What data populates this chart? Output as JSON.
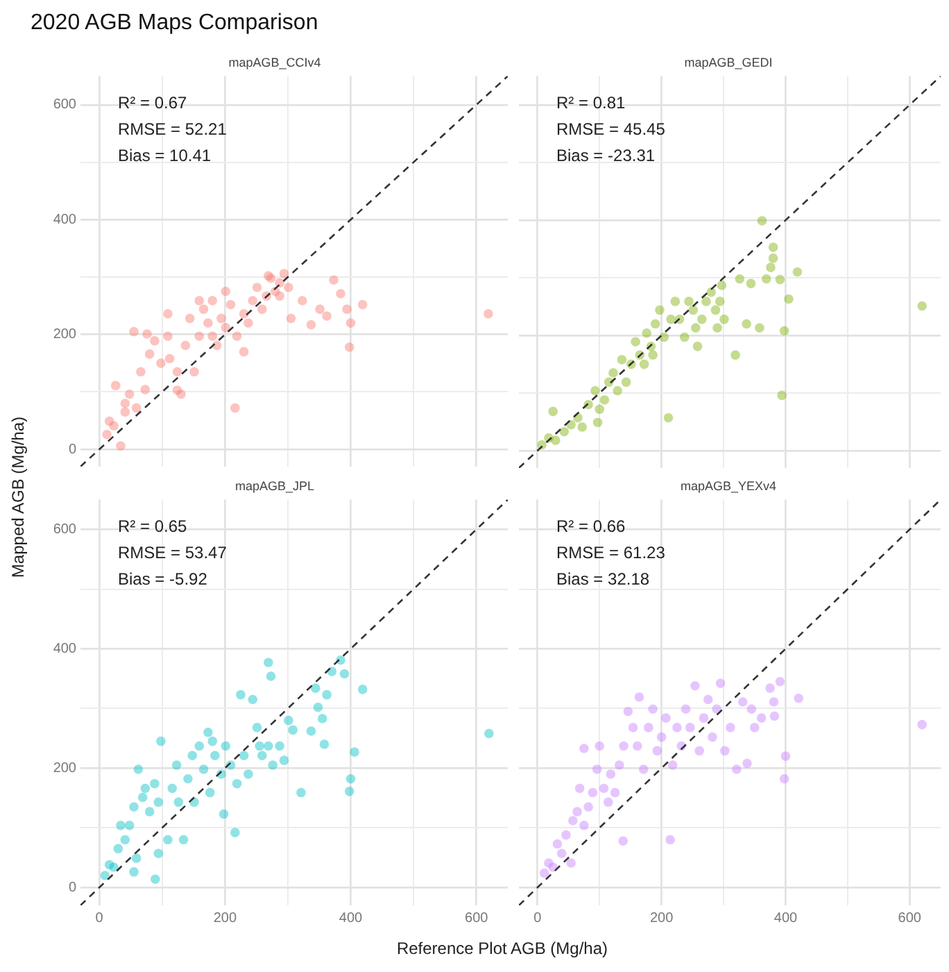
{
  "chart_data": [
    {
      "type": "scatter",
      "title": "2020 AGB Maps Comparison",
      "subtitle": "mapAGB_CCIv4",
      "ylabel": "Mapped AGB (Mg/ha)",
      "annotations": [
        "R² = 0.67",
        "RMSE = 52.21",
        "Bias = 10.41"
      ],
      "xlim": [
        -30,
        650
      ],
      "ylim": [
        -30,
        650
      ],
      "xticks": [
        0,
        {
          "value": 100,
          "label": null
        },
        200,
        {
          "value": 300,
          "label": null
        },
        400,
        {
          "value": 500,
          "label": null
        },
        600
      ],
      "yticks": [
        0,
        {
          "value": 100,
          "label": null
        },
        200,
        {
          "value": 300,
          "label": null
        },
        400,
        {
          "value": 500,
          "label": null
        },
        600
      ],
      "tick_labels": "y",
      "grid": true,
      "legend": false,
      "marker": "circle",
      "series": [
        {
          "type": "scatter",
          "color": "#f8766d",
          "x": [
            12,
            23,
            16,
            34,
            26,
            41,
            48,
            59,
            73,
            66,
            80,
            88,
            55,
            76,
            98,
            109,
            112,
            124,
            130,
            137,
            144,
            151,
            159,
            166,
            173,
            180,
            187,
            194,
            201,
            201,
            209,
            216,
            219,
            230,
            230,
            237,
            244,
            251,
            259,
            266,
            273,
            280,
            287,
            294,
            301,
            305,
            323,
            337,
            351,
            362,
            373,
            384,
            394,
            400,
            398,
            419,
            619,
            41,
            109,
            159,
            287,
            269,
            180,
            124
          ],
          "values": [
            26,
            41,
            49,
            6,
            111,
            80,
            96,
            72,
            104,
            135,
            166,
            189,
            205,
            201,
            150,
            197,
            158,
            135,
            96,
            181,
            228,
            135,
            197,
            244,
            220,
            259,
            181,
            228,
            275,
            212,
            252,
            72,
            197,
            236,
            170,
            220,
            259,
            282,
            244,
            267,
            298,
            275,
            290,
            306,
            282,
            228,
            259,
            217,
            244,
            232,
            295,
            271,
            244,
            220,
            178,
            252,
            236,
            65,
            236,
            259,
            267,
            302,
            197,
            103
          ]
        },
        {
          "type": "line",
          "color": "#333333",
          "line_style": "dashed",
          "marker": "none",
          "x": [
            -30,
            650
          ],
          "values": [
            -30,
            650
          ]
        }
      ]
    },
    {
      "type": "scatter",
      "subtitle": "mapAGB_GEDI",
      "annotations": [
        "R² = 0.81",
        "RMSE = 45.45",
        "Bias = -23.31"
      ],
      "xlim": [
        -30,
        650
      ],
      "ylim": [
        -30,
        650
      ],
      "xticks": [
        0,
        {
          "value": 100,
          "label": null
        },
        200,
        {
          "value": 300,
          "label": null
        },
        400,
        {
          "value": 500,
          "label": null
        },
        600
      ],
      "yticks": [
        0,
        {
          "value": 100,
          "label": null
        },
        200,
        {
          "value": 300,
          "label": null
        },
        400,
        {
          "value": 500,
          "label": null
        },
        600
      ],
      "tick_labels": false,
      "grid": true,
      "legend": false,
      "marker": "circle",
      "series": [
        {
          "type": "scatter",
          "color": "#7cae00",
          "x": [
            7,
            18,
            29,
            25,
            43,
            54,
            65,
            72,
            82,
            93,
            108,
            100,
            115,
            122,
            129,
            136,
            143,
            151,
            158,
            165,
            172,
            176,
            183,
            190,
            197,
            204,
            211,
            215,
            222,
            229,
            237,
            244,
            251,
            258,
            265,
            272,
            280,
            287,
            294,
            301,
            290,
            297,
            319,
            326,
            337,
            344,
            358,
            362,
            369,
            376,
            380,
            380,
            391,
            398,
            394,
            405,
            419,
            620,
            255,
            186,
            97
          ],
          "values": [
            10,
            22,
            18,
            68,
            33,
            45,
            57,
            41,
            80,
            104,
            88,
            72,
            119,
            135,
            104,
            158,
            119,
            150,
            189,
            166,
            150,
            204,
            181,
            220,
            244,
            197,
            57,
            228,
            259,
            228,
            197,
            259,
            244,
            181,
            228,
            259,
            275,
            244,
            259,
            228,
            213,
            287,
            166,
            298,
            220,
            290,
            213,
            399,
            298,
            318,
            353,
            334,
            297,
            208,
            96,
            263,
            310,
            251,
            213,
            166,
            49
          ]
        },
        {
          "type": "line",
          "color": "#333333",
          "line_style": "dashed",
          "marker": "none",
          "x": [
            -30,
            650
          ],
          "values": [
            -30,
            650
          ]
        }
      ]
    },
    {
      "type": "scatter",
      "subtitle": "mapAGB_JPL",
      "xlabel": "Reference Plot AGB (Mg/ha)",
      "annotations": [
        "R² = 0.65",
        "RMSE = 53.47",
        "Bias = -5.92"
      ],
      "xlim": [
        -30,
        650
      ],
      "ylim": [
        -30,
        650
      ],
      "xticks": [
        0,
        {
          "value": 100,
          "label": null
        },
        200,
        {
          "value": 300,
          "label": null
        },
        400,
        {
          "value": 500,
          "label": null
        },
        600
      ],
      "yticks": [
        0,
        {
          "value": 100,
          "label": null
        },
        200,
        {
          "value": 300,
          "label": null
        },
        400,
        {
          "value": 500,
          "label": null
        },
        600
      ],
      "grid": true,
      "legend": false,
      "marker": "circle",
      "series": [
        {
          "type": "scatter",
          "color": "#00bfc4",
          "x": [
            9,
            16,
            23,
            30,
            34,
            41,
            48,
            55,
            62,
            59,
            55,
            69,
            73,
            80,
            88,
            94,
            98,
            109,
            94,
            89,
            116,
            123,
            126,
            134,
            141,
            148,
            151,
            159,
            166,
            173,
            176,
            184,
            194,
            198,
            201,
            209,
            216,
            219,
            225,
            230,
            237,
            244,
            251,
            259,
            269,
            273,
            269,
            276,
            287,
            294,
            301,
            308,
            321,
            337,
            344,
            348,
            355,
            358,
            362,
            370,
            384,
            390,
            398,
            400,
            406,
            419,
            620,
            255,
            180
          ],
          "values": [
            20,
            38,
            34,
            65,
            104,
            80,
            104,
            135,
            198,
            49,
            26,
            151,
            166,
            127,
            174,
            143,
            245,
            80,
            57,
            14,
            166,
            205,
            143,
            80,
            182,
            221,
            143,
            237,
            198,
            260,
            159,
            221,
            190,
            123,
            237,
            205,
            92,
            174,
            323,
            221,
            190,
            315,
            268,
            221,
            377,
            354,
            237,
            205,
            237,
            213,
            280,
            264,
            159,
            262,
            334,
            302,
            283,
            240,
            323,
            362,
            381,
            358,
            161,
            182,
            227,
            332,
            258,
            237,
            245
          ]
        },
        {
          "type": "line",
          "color": "#333333",
          "line_style": "dashed",
          "marker": "none",
          "x": [
            -30,
            650
          ],
          "values": [
            -30,
            650
          ]
        }
      ]
    },
    {
      "type": "scatter",
      "subtitle": "mapAGB_YEXv4",
      "annotations": [
        "R² = 0.66",
        "RMSE = 61.23",
        "Bias = 32.18"
      ],
      "xlim": [
        -30,
        650
      ],
      "ylim": [
        -30,
        650
      ],
      "xticks": [
        0,
        {
          "value": 100,
          "label": null
        },
        200,
        {
          "value": 300,
          "label": null
        },
        400,
        {
          "value": 500,
          "label": null
        },
        600
      ],
      "yticks": [
        0,
        {
          "value": 100,
          "label": null
        },
        200,
        {
          "value": 300,
          "label": null
        },
        400,
        {
          "value": 500,
          "label": null
        },
        600
      ],
      "tick_labels": "x",
      "grid": true,
      "legend": false,
      "marker": "circle",
      "series": [
        {
          "type": "scatter",
          "color": "#c77cff",
          "x": [
            11,
            18,
            25,
            32,
            39,
            46,
            54,
            57,
            64,
            68,
            75,
            75,
            82,
            89,
            96,
            100,
            107,
            114,
            118,
            125,
            132,
            138,
            139,
            146,
            154,
            161,
            164,
            171,
            179,
            186,
            193,
            200,
            207,
            214,
            218,
            225,
            232,
            239,
            246,
            254,
            261,
            268,
            275,
            282,
            289,
            295,
            302,
            311,
            321,
            331,
            338,
            345,
            361,
            375,
            381,
            382,
            391,
            400,
            398,
            421,
            620,
            350
          ],
          "values": [
            24,
            41,
            34,
            73,
            57,
            88,
            41,
            112,
            127,
            166,
            104,
            233,
            135,
            159,
            198,
            237,
            166,
            143,
            190,
            159,
            205,
            78,
            237,
            295,
            268,
            237,
            319,
            198,
            268,
            299,
            229,
            252,
            284,
            80,
            205,
            268,
            237,
            299,
            268,
            338,
            229,
            284,
            315,
            252,
            299,
            342,
            229,
            268,
            198,
            311,
            208,
            299,
            284,
            334,
            311,
            287,
            345,
            220,
            182,
            317,
            273,
            268
          ]
        },
        {
          "type": "line",
          "color": "#333333",
          "line_style": "dashed",
          "marker": "none",
          "x": [
            -30,
            650
          ],
          "values": [
            -30,
            650
          ]
        }
      ]
    }
  ]
}
